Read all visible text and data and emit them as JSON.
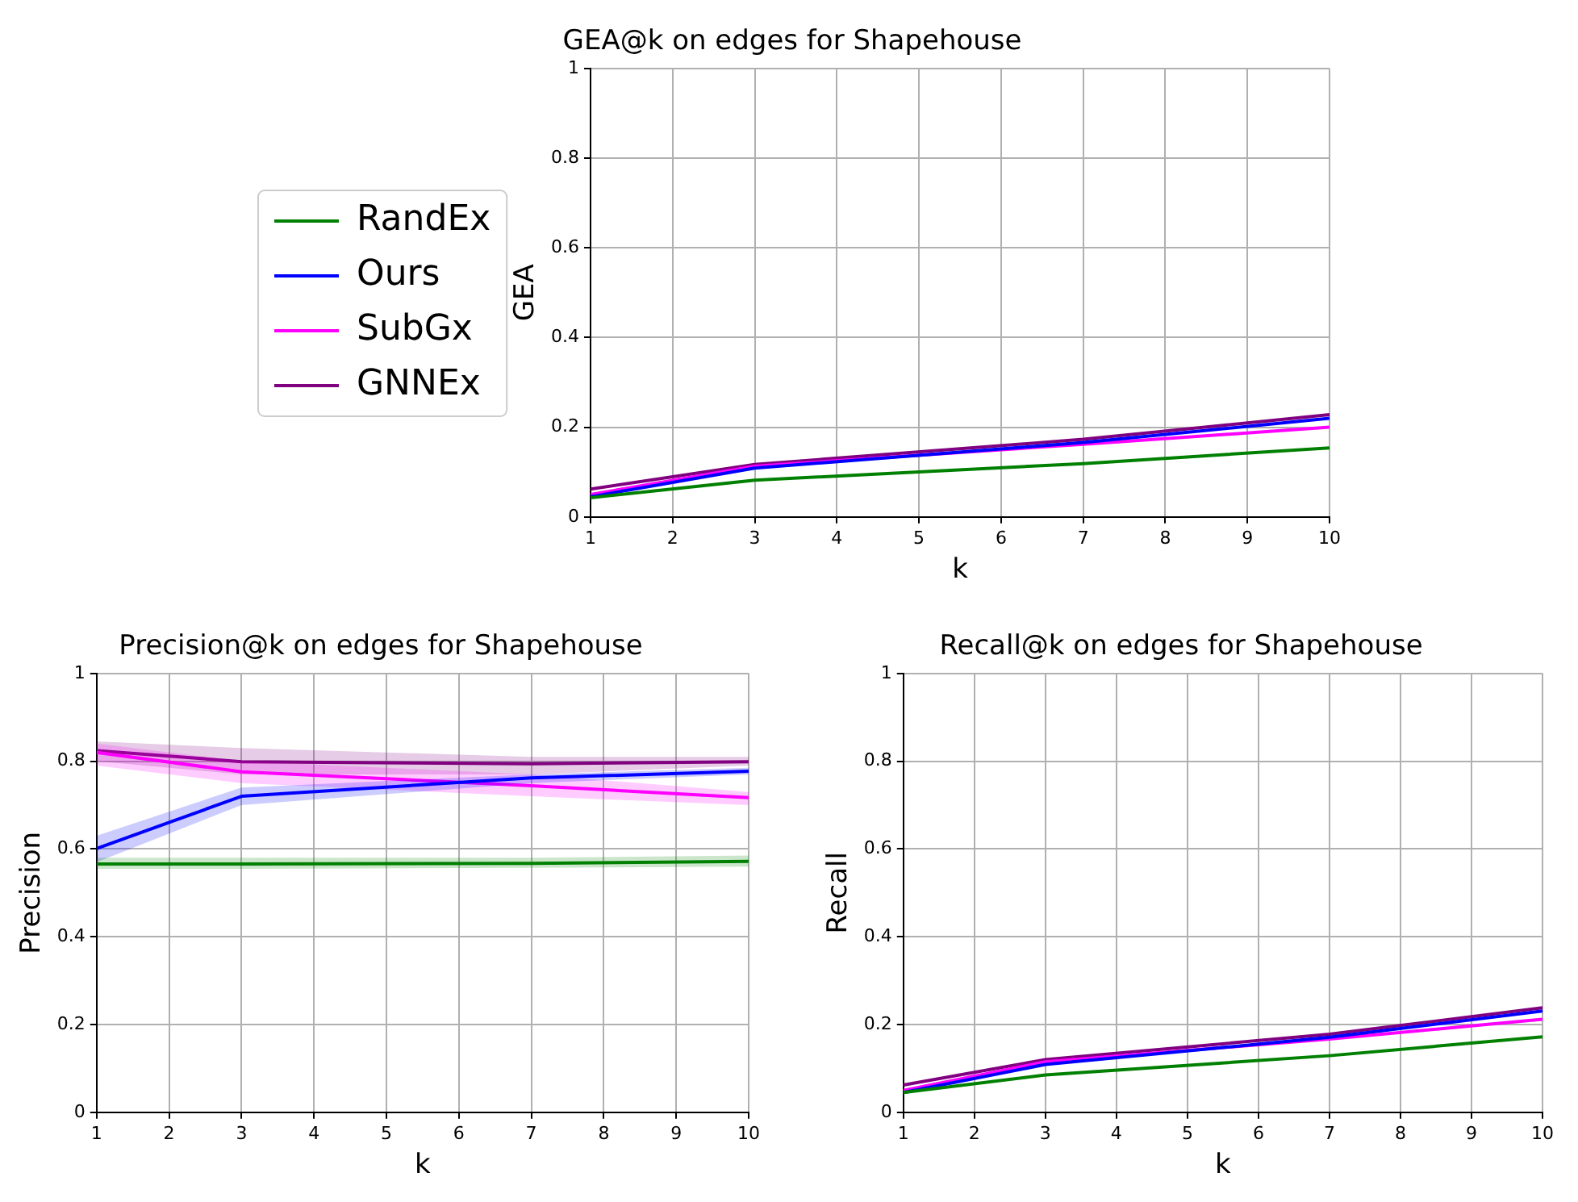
{
  "chart_data": [
    {
      "type": "line",
      "title": "GEA@k on edges for Shapehouse",
      "xlabel": "k",
      "ylabel": "GEA",
      "x": [
        1,
        3,
        7,
        10
      ],
      "xlim": [
        1,
        10
      ],
      "xticks": [
        1,
        2,
        3,
        4,
        5,
        6,
        7,
        8,
        9,
        10
      ],
      "ylim": [
        0,
        1
      ],
      "yticks": [
        0,
        0.2,
        0.4,
        0.6,
        0.8,
        1
      ],
      "grid": true,
      "legend": "left",
      "series": [
        {
          "name": "RandEx",
          "color": "#008000",
          "values": [
            0.043,
            0.082,
            0.119,
            0.154
          ]
        },
        {
          "name": "Ours",
          "color": "#0000ff",
          "values": [
            0.045,
            0.109,
            0.166,
            0.22
          ]
        },
        {
          "name": "SubGx",
          "color": "#ff00ff",
          "values": [
            0.05,
            0.113,
            0.162,
            0.2
          ]
        },
        {
          "name": "GNNEx",
          "color": "#800080",
          "values": [
            0.062,
            0.117,
            0.173,
            0.228
          ]
        }
      ]
    },
    {
      "type": "line",
      "title": "Precision@k on edges for Shapehouse",
      "xlabel": "k",
      "ylabel": "Precision",
      "x": [
        1,
        3,
        7,
        10
      ],
      "xlim": [
        1,
        10
      ],
      "xticks": [
        1,
        2,
        3,
        4,
        5,
        6,
        7,
        8,
        9,
        10
      ],
      "ylim": [
        0,
        1
      ],
      "yticks": [
        0,
        0.2,
        0.4,
        0.6,
        0.8,
        1
      ],
      "grid": true,
      "series": [
        {
          "color": "#008000",
          "values": [
            0.566,
            0.566,
            0.567,
            0.572
          ],
          "lower": [
            0.555,
            0.555,
            0.557,
            0.56
          ],
          "upper": [
            0.58,
            0.58,
            0.58,
            0.585
          ]
        },
        {
          "color": "#0000ff",
          "values": [
            0.601,
            0.72,
            0.762,
            0.777
          ],
          "lower": [
            0.57,
            0.7,
            0.75,
            0.77
          ],
          "upper": [
            0.63,
            0.74,
            0.77,
            0.785
          ]
        },
        {
          "color": "#ff00ff",
          "values": [
            0.82,
            0.776,
            0.744,
            0.717
          ],
          "lower": [
            0.79,
            0.75,
            0.72,
            0.7
          ],
          "upper": [
            0.84,
            0.8,
            0.77,
            0.73
          ]
        },
        {
          "color": "#800080",
          "values": [
            0.824,
            0.799,
            0.794,
            0.799
          ],
          "lower": [
            0.8,
            0.77,
            0.77,
            0.79
          ],
          "upper": [
            0.845,
            0.83,
            0.81,
            0.81
          ]
        }
      ]
    },
    {
      "type": "line",
      "title": "Recall@k on edges for Shapehouse",
      "xlabel": "k",
      "ylabel": "Recall",
      "x": [
        1,
        3,
        7,
        10
      ],
      "xlim": [
        1,
        10
      ],
      "xticks": [
        1,
        2,
        3,
        4,
        5,
        6,
        7,
        8,
        9,
        10
      ],
      "ylim": [
        0,
        1
      ],
      "yticks": [
        0,
        0.2,
        0.4,
        0.6,
        0.8,
        1
      ],
      "grid": true,
      "series": [
        {
          "color": "#008000",
          "values": [
            0.045,
            0.085,
            0.129,
            0.172
          ]
        },
        {
          "color": "#0000ff",
          "values": [
            0.045,
            0.109,
            0.171,
            0.231
          ]
        },
        {
          "color": "#ff00ff",
          "values": [
            0.05,
            0.115,
            0.167,
            0.212
          ]
        },
        {
          "color": "#800080",
          "values": [
            0.062,
            0.12,
            0.178,
            0.238
          ]
        }
      ]
    }
  ]
}
